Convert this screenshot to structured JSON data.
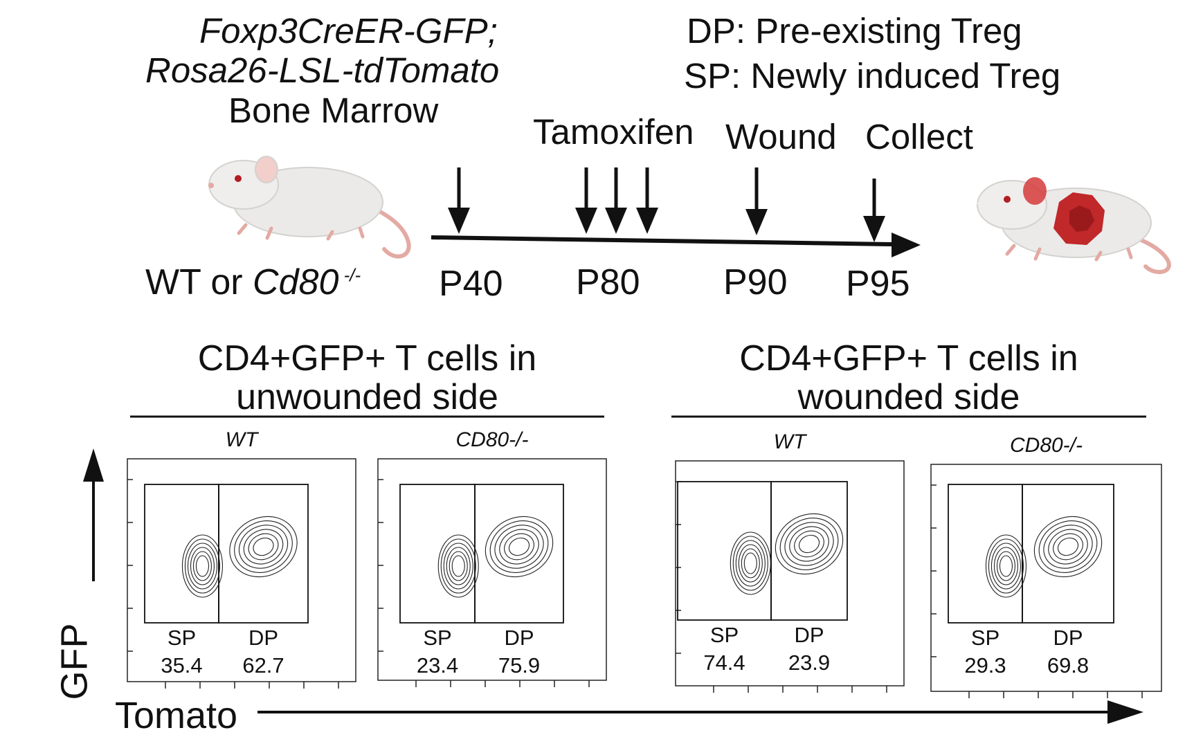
{
  "genotype": {
    "line1": "Foxp3CreER-GFP;",
    "line2": "Rosa26-LSL-tdTomato",
    "line3": "Bone Marrow"
  },
  "legend": {
    "dp": "DP: Pre-existing Treg",
    "sp": "SP: Newly induced Treg"
  },
  "events": {
    "tamoxifen": "Tamoxifen",
    "wound": "Wound",
    "collect": "Collect"
  },
  "recipient": {
    "prefix": "WT or ",
    "gene": "Cd80",
    "sup": " -/-"
  },
  "timepoints": [
    "P40",
    "P80",
    "P90",
    "P95"
  ],
  "groups": [
    {
      "title_line1": "CD4+GFP+ T cells in",
      "title_line2": "unwounded side"
    },
    {
      "title_line1": "CD4+GFP+ T cells in",
      "title_line2": "wounded side"
    }
  ],
  "panels": [
    {
      "title": "WT",
      "sp_label": "SP",
      "dp_label": "DP",
      "sp_value": "35.4",
      "dp_value": "62.7"
    },
    {
      "title": "CD80-/-",
      "sp_label": "SP",
      "dp_label": "DP",
      "sp_value": "23.4",
      "dp_value": "75.9"
    },
    {
      "title": "WT",
      "sp_label": "SP",
      "dp_label": "DP",
      "sp_value": "74.4",
      "dp_value": "23.9"
    },
    {
      "title": "CD80-/-",
      "sp_label": "SP",
      "dp_label": "DP",
      "sp_value": "29.3",
      "dp_value": "69.8"
    }
  ],
  "axes": {
    "y": "GFP",
    "x": "Tomato"
  },
  "colors": {
    "wound": "#c0282a",
    "mouse_body": "#ecebea",
    "tail": "#e8b4ae"
  }
}
